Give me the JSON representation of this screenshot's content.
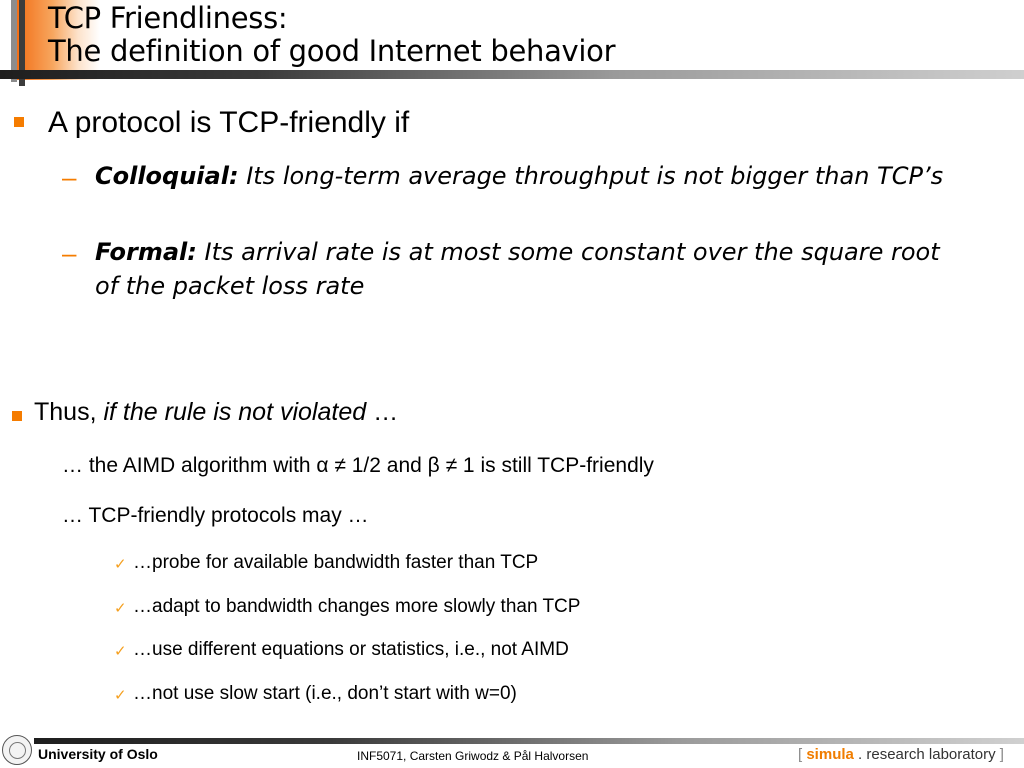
{
  "slide": {
    "title_line1": "TCP Friendliness:",
    "title_line2": "The definition of good Internet behavior",
    "bullet1": "A protocol is TCP-friendly if",
    "colloquial_label": "Colloquial:",
    "colloquial_text": " Its long-term average throughput is not bigger than TCP’s",
    "formal_label": "Formal:",
    "formal_text_line1": " Its arrival rate is at most some constant over the square root",
    "formal_text_line2": "of the packet loss rate",
    "thus_prefix": "Thus, ",
    "thus_italic": "if the rule is not violated",
    "thus_suffix": " …",
    "aimd_line": "… the AIMD algorithm with α ≠ 1/2 and β ≠ 1 is still TCP-friendly",
    "may_line": "… TCP-friendly protocols may …",
    "checks": [
      "…probe for available bandwidth faster than TCP",
      "…adapt to bandwidth changes more slowly than TCP",
      "…use different equations or statistics, i.e., not AIMD",
      "…not use slow start (i.e., don’t start with w=0)"
    ]
  },
  "footer": {
    "university": "University of Oslo",
    "course": "INF5071, Carsten Griwodz & Pål Halvorsen",
    "simula_open": "[ ",
    "simula_name": "simula",
    "simula_rest": " . research laboratory",
    "simula_close": " ]"
  },
  "icons": {
    "bullet": "orange-square-bullet",
    "sub_bullet": "orange-dash",
    "check": "check-mark-icon",
    "logo": "university-seal"
  },
  "colors": {
    "accent": "#f57c00",
    "check": "#f5a020"
  }
}
